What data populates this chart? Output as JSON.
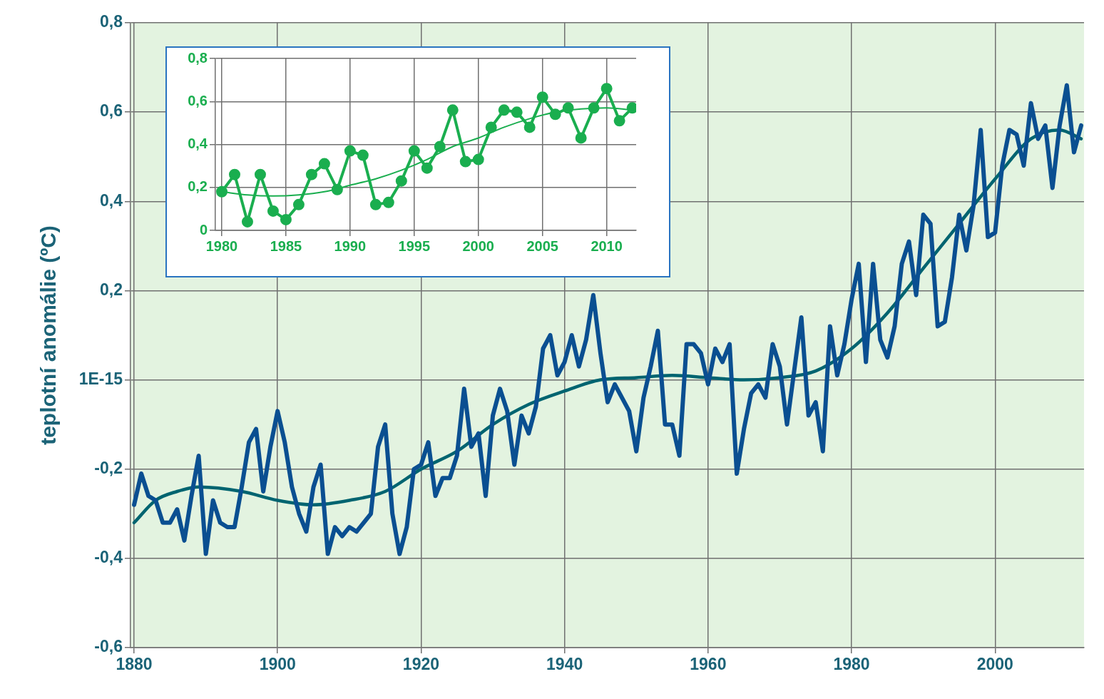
{
  "chart_data": [
    {
      "type": "line",
      "ylabel": "teplotní anomálie (ºC)",
      "grid": true,
      "marker": "none",
      "xlim": [
        1879.5,
        2012.4
      ],
      "xticks": [
        1880,
        1900,
        1920,
        1940,
        1960,
        1980,
        2000
      ],
      "ylim": [
        -0.6,
        0.8
      ],
      "yticks": [
        {
          "value": -0.6,
          "label": "-0,6"
        },
        {
          "value": -0.4,
          "label": "-0,4"
        },
        {
          "value": -0.2,
          "label": "-0,2"
        },
        {
          "value": 0,
          "label": "1E-15"
        },
        {
          "value": 0.2,
          "label": "0,2"
        },
        {
          "value": 0.4,
          "label": "0,4"
        },
        {
          "value": 0.6,
          "label": "0,6"
        },
        {
          "value": 0.8,
          "label": "0,8"
        }
      ],
      "x": [
        1880,
        1881,
        1882,
        1883,
        1884,
        1885,
        1886,
        1887,
        1888,
        1889,
        1890,
        1891,
        1892,
        1893,
        1894,
        1895,
        1896,
        1897,
        1898,
        1899,
        1900,
        1901,
        1902,
        1903,
        1904,
        1905,
        1906,
        1907,
        1908,
        1909,
        1910,
        1911,
        1912,
        1913,
        1914,
        1915,
        1916,
        1917,
        1918,
        1919,
        1920,
        1921,
        1922,
        1923,
        1924,
        1925,
        1926,
        1927,
        1928,
        1929,
        1930,
        1931,
        1932,
        1933,
        1934,
        1935,
        1936,
        1937,
        1938,
        1939,
        1940,
        1941,
        1942,
        1943,
        1944,
        1945,
        1946,
        1947,
        1948,
        1949,
        1950,
        1951,
        1952,
        1953,
        1954,
        1955,
        1956,
        1957,
        1958,
        1959,
        1960,
        1961,
        1962,
        1963,
        1964,
        1965,
        1966,
        1967,
        1968,
        1969,
        1970,
        1971,
        1972,
        1973,
        1974,
        1975,
        1976,
        1977,
        1978,
        1979,
        1980,
        1981,
        1982,
        1983,
        1984,
        1985,
        1986,
        1987,
        1988,
        1989,
        1990,
        1991,
        1992,
        1993,
        1994,
        1995,
        1996,
        1997,
        1998,
        1999,
        2000,
        2001,
        2002,
        2003,
        2004,
        2005,
        2006,
        2007,
        2008,
        2009,
        2010,
        2011,
        2012
      ],
      "series": [
        {
          "color": "#0a4f91",
          "values": [
            -0.28,
            -0.21,
            -0.26,
            -0.27,
            -0.32,
            -0.32,
            -0.29,
            -0.36,
            -0.26,
            -0.17,
            -0.39,
            -0.27,
            -0.32,
            -0.33,
            -0.33,
            -0.24,
            -0.14,
            -0.11,
            -0.25,
            -0.15,
            -0.07,
            -0.14,
            -0.24,
            -0.3,
            -0.34,
            -0.24,
            -0.19,
            -0.39,
            -0.33,
            -0.35,
            -0.33,
            -0.34,
            -0.32,
            -0.3,
            -0.15,
            -0.1,
            -0.3,
            -0.39,
            -0.33,
            -0.2,
            -0.19,
            -0.14,
            -0.26,
            -0.22,
            -0.22,
            -0.17,
            -0.02,
            -0.15,
            -0.12,
            -0.26,
            -0.08,
            -0.02,
            -0.07,
            -0.19,
            -0.08,
            -0.12,
            -0.06,
            0.07,
            0.1,
            0.01,
            0.04,
            0.1,
            0.03,
            0.09,
            0.19,
            0.06,
            -0.05,
            -0.01,
            -0.04,
            -0.07,
            -0.16,
            -0.04,
            0.03,
            0.11,
            -0.1,
            -0.1,
            -0.17,
            0.08,
            0.08,
            0.06,
            -0.01,
            0.07,
            0.04,
            0.08,
            -0.21,
            -0.11,
            -0.03,
            -0.01,
            -0.04,
            0.08,
            0.03,
            -0.1,
            0.02,
            0.14,
            -0.08,
            -0.05,
            -0.16,
            0.12,
            0.01,
            0.08,
            0.18,
            0.26,
            0.04,
            0.26,
            0.09,
            0.05,
            0.12,
            0.26,
            0.31,
            0.19,
            0.37,
            0.35,
            0.12,
            0.13,
            0.23,
            0.37,
            0.29,
            0.39,
            0.56,
            0.32,
            0.33,
            0.48,
            0.56,
            0.55,
            0.48,
            0.62,
            0.54,
            0.57,
            0.43,
            0.57,
            0.66,
            0.51,
            0.57
          ]
        },
        {
          "type": "line",
          "color": "#006470",
          "x": [
            1880,
            1883,
            1886,
            1889,
            1895,
            1900,
            1905,
            1910,
            1915,
            1920,
            1925,
            1930,
            1935,
            1940,
            1945,
            1950,
            1955,
            1960,
            1965,
            1970,
            1975,
            1980,
            1985,
            1990,
            1995,
            2000,
            2005,
            2009,
            2012
          ],
          "values": [
            -0.32,
            -0.27,
            -0.25,
            -0.24,
            -0.25,
            -0.27,
            -0.28,
            -0.27,
            -0.25,
            -0.2,
            -0.16,
            -0.1,
            -0.055,
            -0.025,
            0,
            0.005,
            0.01,
            0.005,
            0,
            0.005,
            0.02,
            0.07,
            0.15,
            0.25,
            0.35,
            0.45,
            0.54,
            0.56,
            0.54
          ]
        }
      ]
    },
    {
      "type": "line",
      "grid": true,
      "marker": "circle",
      "xlim": [
        1979.5,
        2012.3
      ],
      "xticks": [
        1980,
        1985,
        1990,
        1995,
        2000,
        2005,
        2010
      ],
      "ylim": [
        0,
        0.8
      ],
      "yticks": [
        0,
        {
          "value": 0.2,
          "label": "0,2"
        },
        {
          "value": 0.4,
          "label": "0,4"
        },
        {
          "value": 0.6,
          "label": "0,6"
        },
        {
          "value": 0.8,
          "label": "0,8"
        }
      ],
      "x": [
        1980,
        1981,
        1982,
        1983,
        1984,
        1985,
        1986,
        1987,
        1988,
        1989,
        1990,
        1991,
        1992,
        1993,
        1994,
        1995,
        1996,
        1997,
        1998,
        1999,
        2000,
        2001,
        2002,
        2003,
        2004,
        2005,
        2006,
        2007,
        2008,
        2009,
        2010,
        2011,
        2012
      ],
      "series": [
        {
          "color": "#1aae4f",
          "values": [
            0.18,
            0.26,
            0.04,
            0.26,
            0.09,
            0.05,
            0.12,
            0.26,
            0.31,
            0.19,
            0.37,
            0.35,
            0.12,
            0.13,
            0.23,
            0.37,
            0.29,
            0.39,
            0.56,
            0.32,
            0.33,
            0.48,
            0.56,
            0.55,
            0.48,
            0.62,
            0.54,
            0.57,
            0.43,
            0.57,
            0.66,
            0.51,
            0.57
          ]
        },
        {
          "type": "line",
          "color": "#1aae4f",
          "marker": "none",
          "x": [
            1980,
            1982,
            1984,
            1986,
            1988,
            1990,
            1992,
            1994,
            1996,
            1998,
            2000,
            2002,
            2004,
            2006,
            2008,
            2010,
            2012
          ],
          "values": [
            0.18,
            0.165,
            0.16,
            0.165,
            0.18,
            0.21,
            0.24,
            0.28,
            0.33,
            0.39,
            0.43,
            0.48,
            0.52,
            0.55,
            0.565,
            0.57,
            0.56
          ]
        }
      ]
    }
  ]
}
